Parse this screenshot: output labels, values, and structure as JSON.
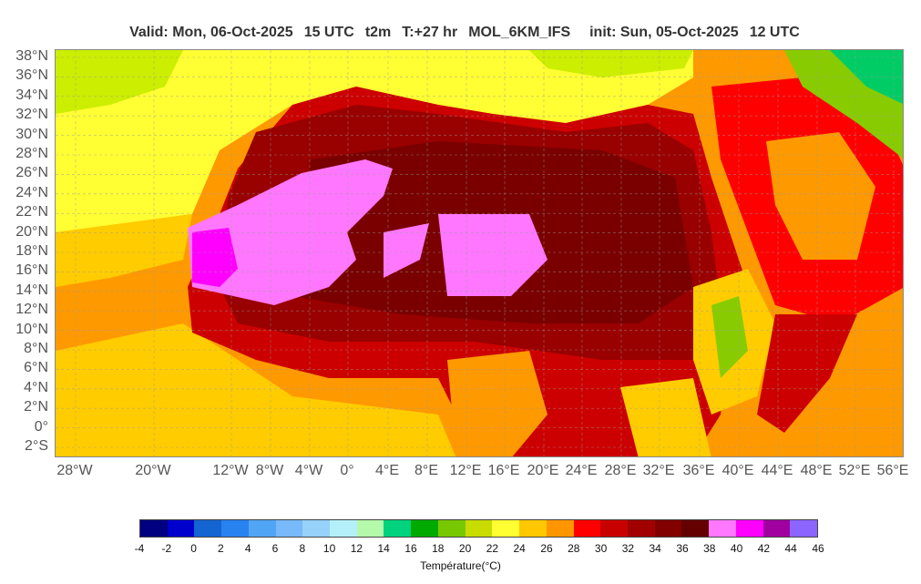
{
  "header": {
    "valid": "Valid: Mon, 06-Oct-2025",
    "hour": "15 UTC",
    "param": "t2m",
    "lead": "T:+27 hr",
    "model": "MOL_6KM_IFS",
    "init": "init: Sun, 05-Oct-2025",
    "init_hour": "12 UTC"
  },
  "map": {
    "lat_labels": [
      "38°N",
      "36°N",
      "34°N",
      "32°N",
      "30°N",
      "28°N",
      "26°N",
      "24°N",
      "22°N",
      "20°N",
      "18°N",
      "16°N",
      "14°N",
      "12°N",
      "10°N",
      "8°N",
      "6°N",
      "4°N",
      "2°N",
      "0°",
      "2°S"
    ],
    "lon_labels": [
      "28°W",
      "20°W",
      "12°W",
      "8°W",
      "4°W",
      "0°",
      "4°E",
      "8°E",
      "12°E",
      "16°E",
      "20°E",
      "24°E",
      "28°E",
      "32°E",
      "36°E",
      "40°E",
      "44°E",
      "48°E",
      "52°E",
      "56°E"
    ],
    "colors": {
      "ocean_warm": "#ff9900",
      "ocean_mid": "#ffcc00",
      "ocean_cool": "#ffff33",
      "sea_cool": "#ccee00",
      "hot_34": "#990000",
      "hot_36": "#7a0000",
      "hot_32": "#cc0000",
      "hot_30": "#ff0000",
      "max_40": "#ff77ff",
      "max_42": "#ff00ff",
      "highland_green": "#88cc00",
      "mountain_green": "#00cc66"
    }
  },
  "colorbar": {
    "colors": [
      "#000080",
      "#0000cc",
      "#1464d2",
      "#2882f0",
      "#50a5f5",
      "#78b9fa",
      "#96d2fa",
      "#b4f0fa",
      "#b4faaa",
      "#00d27d",
      "#00aa00",
      "#78c800",
      "#c8dc00",
      "#ffff32",
      "#ffc800",
      "#ff9600",
      "#ff0000",
      "#c80000",
      "#a00000",
      "#820000",
      "#640000",
      "#ff78ff",
      "#ff00ff",
      "#a000a0",
      "#8c64ff"
    ],
    "ticks": [
      "-4",
      "-2",
      "0",
      "2",
      "4",
      "6",
      "8",
      "10",
      "12",
      "14",
      "16",
      "18",
      "20",
      "22",
      "24",
      "26",
      "28",
      "30",
      "32",
      "34",
      "36",
      "38",
      "40",
      "42",
      "44",
      "46"
    ],
    "label": "Température(°C)"
  }
}
